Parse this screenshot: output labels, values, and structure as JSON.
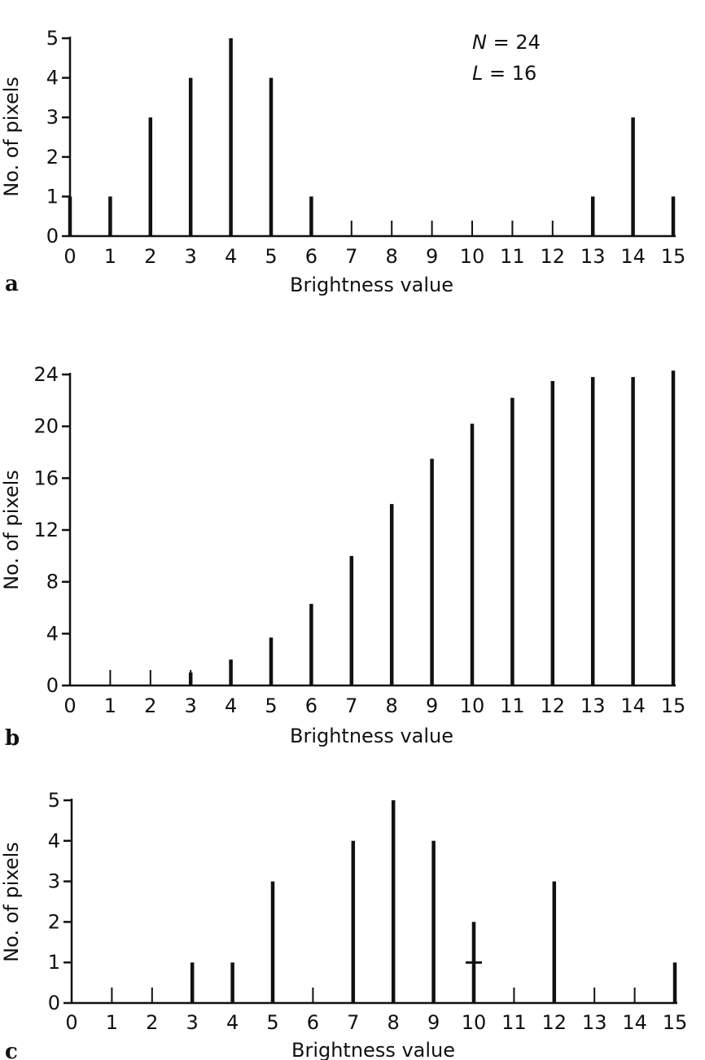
{
  "chart_data": [
    {
      "type": "bar",
      "panel_label": "a",
      "categories": [
        "0",
        "1",
        "2",
        "3",
        "4",
        "5",
        "6",
        "7",
        "8",
        "9",
        "10",
        "11",
        "12",
        "13",
        "14",
        "15"
      ],
      "values": [
        1,
        1,
        3,
        4,
        5,
        4,
        1,
        0,
        0,
        0,
        0,
        0,
        0,
        1,
        3,
        1
      ],
      "xlabel": "Brightness value",
      "ylabel": "No. of pixels",
      "ylim": [
        0,
        5
      ],
      "yticks": [
        "0",
        "1",
        "2",
        "3",
        "4",
        "5"
      ],
      "annotations": [
        {
          "var": "N",
          "text": " = 24"
        },
        {
          "var": "L",
          "text": " = 16"
        }
      ]
    },
    {
      "type": "bar",
      "panel_label": "b",
      "categories": [
        "0",
        "1",
        "2",
        "3",
        "4",
        "5",
        "6",
        "7",
        "8",
        "9",
        "10",
        "11",
        "12",
        "13",
        "14",
        "15"
      ],
      "values": [
        0,
        0,
        0,
        1,
        2,
        3.7,
        6.3,
        10,
        14,
        17.5,
        20.2,
        22.2,
        23.5,
        23.8,
        23.8,
        24.3
      ],
      "xlabel": "Brightness value",
      "ylabel": "No. of pixels",
      "ylim": [
        0,
        24
      ],
      "yticks": [
        "0",
        "4",
        "8",
        "12",
        "16",
        "20",
        "24"
      ]
    },
    {
      "type": "bar",
      "panel_label": "c",
      "categories": [
        "0",
        "1",
        "2",
        "3",
        "4",
        "5",
        "6",
        "7",
        "8",
        "9",
        "10",
        "11",
        "12",
        "13",
        "14",
        "15"
      ],
      "values": [
        0,
        0,
        0,
        1,
        1,
        3,
        0,
        4,
        5,
        4,
        2,
        0,
        3,
        0,
        0,
        1
      ],
      "xlabel": "Brightness value",
      "ylabel": "No. of pixels",
      "ylim": [
        0,
        5
      ],
      "yticks": [
        "0",
        "1",
        "2",
        "3",
        "4",
        "5"
      ]
    }
  ]
}
